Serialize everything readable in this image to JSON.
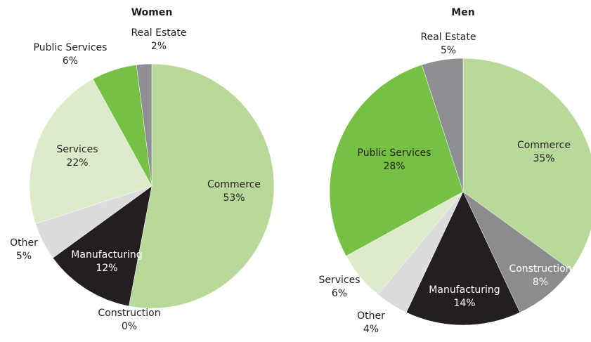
{
  "chart_data": [
    {
      "type": "pie",
      "title": "Women",
      "categories": [
        "Commerce",
        "Construction",
        "Manufacturing",
        "Other",
        "Services",
        "Public Services",
        "Real Estate"
      ],
      "values": [
        53,
        0,
        12,
        5,
        22,
        6,
        2
      ],
      "value_labels": [
        "53%",
        "0%",
        "12%",
        "5%",
        "22%",
        "6%",
        "2%"
      ],
      "colors": [
        "#b9d99a",
        "#8c8c8e",
        "#231f20",
        "#dcdcde",
        "#dcebc9",
        "#76c043",
        "#8e8f93"
      ]
    },
    {
      "type": "pie",
      "title": "Men",
      "categories": [
        "Commerce",
        "Construction",
        "Manufacturing",
        "Other",
        "Services",
        "Public Services",
        "Real Estate"
      ],
      "values": [
        35,
        8,
        14,
        4,
        6,
        28,
        5
      ],
      "value_labels": [
        "35%",
        "8%",
        "14%",
        "4%",
        "6%",
        "28%",
        "5%"
      ],
      "colors": [
        "#b9d99a",
        "#8c8c8e",
        "#231f20",
        "#dcdcde",
        "#dcebc9",
        "#76c043",
        "#8e8f93"
      ]
    }
  ]
}
